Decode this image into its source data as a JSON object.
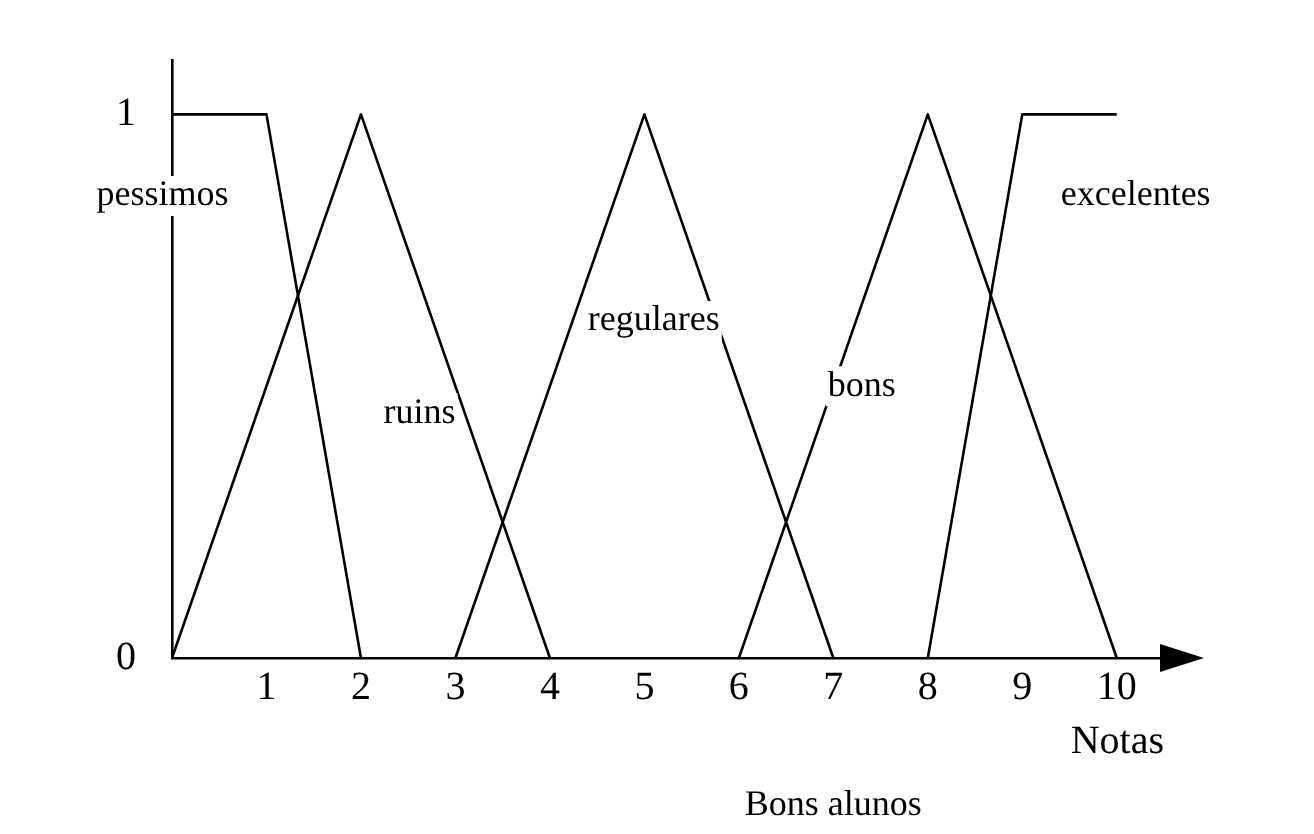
{
  "chart_data": {
    "type": "line",
    "xlabel": "Notas",
    "annotations": [
      "Bons alunos"
    ],
    "xlim": [
      0,
      10.5
    ],
    "xticks": [
      1,
      2,
      3,
      4,
      5,
      6,
      7,
      8,
      9,
      10
    ],
    "ylim": [
      0,
      1.1
    ],
    "yticks": [
      0,
      1
    ],
    "grid": false,
    "legend": false,
    "marker": "none",
    "line_style": "solid",
    "series": [
      {
        "name": "pessimos",
        "color": "#000000",
        "x": [
          0,
          1,
          2
        ],
        "values": [
          1,
          1,
          0
        ]
      },
      {
        "name": "ruins",
        "color": "#000000",
        "x": [
          0,
          2,
          4
        ],
        "values": [
          0,
          1,
          0
        ]
      },
      {
        "name": "regulares",
        "color": "#000000",
        "x": [
          3,
          5,
          7
        ],
        "values": [
          0,
          1,
          0
        ]
      },
      {
        "name": "bons",
        "color": "#000000",
        "x": [
          6,
          8,
          10
        ],
        "values": [
          0,
          1,
          0
        ]
      },
      {
        "name": "excelentes",
        "color": "#000000",
        "x": [
          8,
          9,
          10
        ],
        "values": [
          0,
          1,
          1
        ]
      }
    ]
  }
}
